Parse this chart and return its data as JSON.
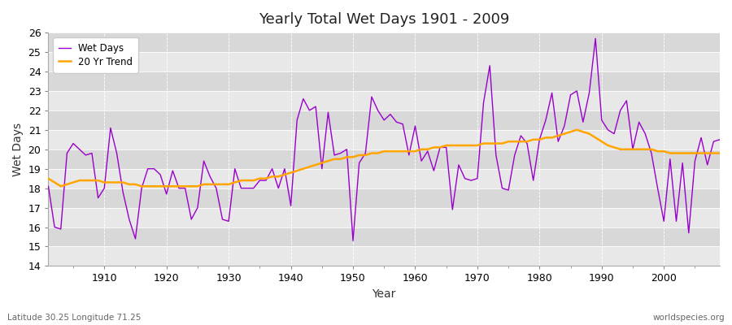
{
  "title": "Yearly Total Wet Days 1901 - 2009",
  "xlabel": "Year",
  "ylabel": "Wet Days",
  "footnote_left": "Latitude 30.25 Longitude 71.25",
  "footnote_right": "worldspecies.org",
  "ylim": [
    14,
    26
  ],
  "yticks": [
    14,
    15,
    16,
    17,
    18,
    19,
    20,
    21,
    22,
    23,
    24,
    25,
    26
  ],
  "xlim": [
    1901,
    2009
  ],
  "background_color": "#ffffff",
  "plot_bg_color": "#ffffff",
  "band_color_light": "#f0f0f0",
  "band_color_dark": "#dcdcdc",
  "line_color": "#9900cc",
  "trend_color": "#ffa500",
  "years": [
    1901,
    1902,
    1903,
    1904,
    1905,
    1906,
    1907,
    1908,
    1909,
    1910,
    1911,
    1912,
    1913,
    1914,
    1915,
    1916,
    1917,
    1918,
    1919,
    1920,
    1921,
    1922,
    1923,
    1924,
    1925,
    1926,
    1927,
    1928,
    1929,
    1930,
    1931,
    1932,
    1933,
    1934,
    1935,
    1936,
    1937,
    1938,
    1939,
    1940,
    1941,
    1942,
    1943,
    1944,
    1945,
    1946,
    1947,
    1948,
    1949,
    1950,
    1951,
    1952,
    1953,
    1954,
    1955,
    1956,
    1957,
    1958,
    1959,
    1960,
    1961,
    1962,
    1963,
    1964,
    1965,
    1966,
    1967,
    1968,
    1969,
    1970,
    1971,
    1972,
    1973,
    1974,
    1975,
    1976,
    1977,
    1978,
    1979,
    1980,
    1981,
    1982,
    1983,
    1984,
    1985,
    1986,
    1987,
    1988,
    1989,
    1990,
    1991,
    1992,
    1993,
    1994,
    1995,
    1996,
    1997,
    1998,
    1999,
    2000,
    2001,
    2002,
    2003,
    2004,
    2005,
    2006,
    2007,
    2008,
    2009
  ],
  "wet_days": [
    18.1,
    16.0,
    15.9,
    19.8,
    20.3,
    20.0,
    19.7,
    19.8,
    17.5,
    18.0,
    21.1,
    19.8,
    17.8,
    16.4,
    15.4,
    18.0,
    19.0,
    19.0,
    18.7,
    17.7,
    18.9,
    18.0,
    18.0,
    16.4,
    17.0,
    19.4,
    18.6,
    18.0,
    16.4,
    16.3,
    19.0,
    18.0,
    18.0,
    18.0,
    18.4,
    18.4,
    19.0,
    18.0,
    19.0,
    17.1,
    21.5,
    22.6,
    22.0,
    22.2,
    19.0,
    21.9,
    19.7,
    19.8,
    20.0,
    15.3,
    19.3,
    19.8,
    22.7,
    22.0,
    21.5,
    21.8,
    21.4,
    21.3,
    19.7,
    21.2,
    19.4,
    19.9,
    18.9,
    20.1,
    20.1,
    16.9,
    19.2,
    18.5,
    18.4,
    18.5,
    22.4,
    24.3,
    19.7,
    18.0,
    17.9,
    19.7,
    20.7,
    20.3,
    18.4,
    20.5,
    21.5,
    22.9,
    20.4,
    21.2,
    22.8,
    23.0,
    21.4,
    22.9,
    25.7,
    21.5,
    21.0,
    20.8,
    22.0,
    22.5,
    20.0,
    21.4,
    20.8,
    19.8,
    18.0,
    16.3,
    19.5,
    16.3,
    19.3,
    15.7,
    19.4,
    20.6,
    19.2,
    20.4,
    20.5
  ],
  "trend_years": [
    1901,
    1902,
    1903,
    1904,
    1905,
    1906,
    1907,
    1908,
    1909,
    1910,
    1911,
    1912,
    1913,
    1914,
    1915,
    1916,
    1917,
    1918,
    1919,
    1920,
    1921,
    1922,
    1923,
    1924,
    1925,
    1926,
    1927,
    1928,
    1929,
    1930,
    1931,
    1932,
    1933,
    1934,
    1935,
    1936,
    1937,
    1938,
    1939,
    1940,
    1941,
    1942,
    1943,
    1944,
    1945,
    1946,
    1947,
    1948,
    1949,
    1950,
    1951,
    1952,
    1953,
    1954,
    1955,
    1956,
    1957,
    1958,
    1959,
    1960,
    1961,
    1962,
    1963,
    1964,
    1965,
    1966,
    1967,
    1968,
    1969,
    1970,
    1971,
    1972,
    1973,
    1974,
    1975,
    1976,
    1977,
    1978,
    1979,
    1980,
    1981,
    1982,
    1983,
    1984,
    1985,
    1986,
    1987,
    1988,
    1989,
    1990,
    1991,
    1992,
    1993,
    1994,
    1995,
    1996,
    1997,
    1998,
    1999,
    2000,
    2001,
    2002,
    2003,
    2004,
    2005,
    2006,
    2007,
    2008,
    2009
  ],
  "trend_values": [
    18.5,
    18.3,
    18.1,
    18.2,
    18.3,
    18.4,
    18.4,
    18.4,
    18.4,
    18.3,
    18.3,
    18.3,
    18.3,
    18.2,
    18.2,
    18.1,
    18.1,
    18.1,
    18.1,
    18.1,
    18.1,
    18.1,
    18.1,
    18.1,
    18.1,
    18.2,
    18.2,
    18.2,
    18.2,
    18.2,
    18.3,
    18.4,
    18.4,
    18.4,
    18.5,
    18.5,
    18.6,
    18.6,
    18.7,
    18.8,
    18.9,
    19.0,
    19.1,
    19.2,
    19.3,
    19.4,
    19.5,
    19.5,
    19.6,
    19.6,
    19.7,
    19.7,
    19.8,
    19.8,
    19.9,
    19.9,
    19.9,
    19.9,
    19.9,
    19.9,
    20.0,
    20.0,
    20.1,
    20.1,
    20.2,
    20.2,
    20.2,
    20.2,
    20.2,
    20.2,
    20.3,
    20.3,
    20.3,
    20.3,
    20.4,
    20.4,
    20.4,
    20.4,
    20.5,
    20.5,
    20.6,
    20.6,
    20.7,
    20.8,
    20.9,
    21.0,
    20.9,
    20.8,
    20.6,
    20.4,
    20.2,
    20.1,
    20.0,
    20.0,
    20.0,
    20.0,
    20.0,
    20.0,
    19.9,
    19.9,
    19.8,
    19.8,
    19.8,
    19.8,
    19.8,
    19.8,
    19.8,
    19.8,
    19.8
  ]
}
